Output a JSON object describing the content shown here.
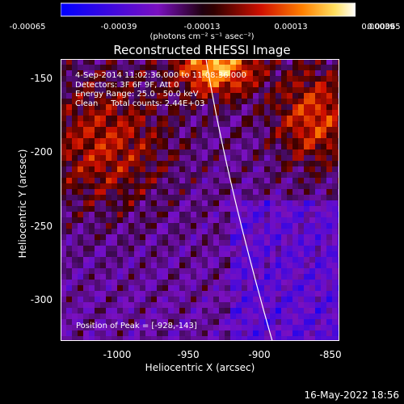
{
  "colorbar": {
    "ticks": [
      "-0.00065",
      "-0.00039",
      "-0.00013",
      "0.00013",
      "0.00039",
      "0.00065"
    ],
    "unit_label": "(photons cm⁻² s⁻¹ asec⁻²)"
  },
  "chart_data": {
    "type": "heatmap",
    "title": "Reconstructed RHESSI Image",
    "xlabel": "Heliocentric X (arcsec)",
    "ylabel": "Heliocentric Y (arcsec)",
    "xlim": [
      -1035,
      -840
    ],
    "ylim": [
      -328,
      -135
    ],
    "x_ticks": [
      "-1000",
      "-950",
      "-900",
      "-850"
    ],
    "y_ticks": [
      "-150",
      "-200",
      "-250",
      "-300"
    ],
    "color_range": [
      -0.00065,
      0.00065
    ],
    "annotations": [
      "4-Sep-2014 11:02:36.000 to 11:08:36.000",
      "Detectors: 3F 6F 9F, Att 0",
      "Energy Range: 25.0 - 50.0 keV",
      "Clean     Total counts: 2.44E+03"
    ],
    "peak_label": "Position of Peak = [-928,-143]",
    "peak_position": [
      -928,
      -143
    ]
  },
  "footer": "16-May-2022 18:56"
}
